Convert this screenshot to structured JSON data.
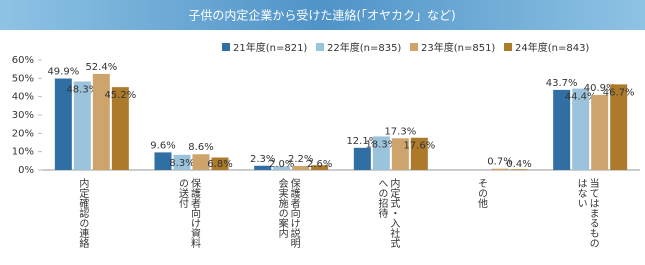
{
  "chart_data": {
    "type": "bar",
    "title": "子供の内定企業から受けた連絡(「オヤカク」など)",
    "categories": [
      "内定確認の連絡",
      "保護者向け資料の送付",
      "保護者向け説明会実施の案内",
      "内定式・入社式への招待",
      "その他",
      "当てはまるものはない"
    ],
    "series": [
      {
        "name": "21年度(n=821)",
        "color": "#2f6fa3",
        "values": [
          49.9,
          9.6,
          2.3,
          12.1,
          null,
          43.7
        ],
        "value_labels": [
          "49.9%",
          "9.6%",
          "2.3%",
          "12.1%",
          null,
          "43.7%"
        ]
      },
      {
        "name": "22年度(n=835)",
        "color": "#9cc3dc",
        "values": [
          48.3,
          8.3,
          2.0,
          18.3,
          null,
          44.4
        ],
        "value_labels": [
          "48.3%",
          "8.3%",
          "2.0%",
          "18.3%",
          null,
          "44.4%"
        ]
      },
      {
        "name": "23年度(n=851)",
        "color": "#cda46c",
        "values": [
          52.4,
          8.6,
          2.2,
          17.3,
          0.7,
          40.9
        ],
        "value_labels": [
          "52.4%",
          "8.6%",
          "2.2%",
          "17.3%",
          "0.7%",
          "40.9%"
        ]
      },
      {
        "name": "24年度(n=843)",
        "color": "#ad7a2c",
        "values": [
          45.2,
          6.8,
          2.6,
          17.6,
          0.4,
          46.7
        ],
        "value_labels": [
          "45.2%",
          "6.8%",
          "2.6%",
          "17.6%",
          "0.4%",
          "46.7%"
        ]
      }
    ],
    "ylim": [
      0,
      60
    ],
    "yticks": [
      {
        "value": 0,
        "label": "0%"
      },
      {
        "value": 10,
        "label": "10%"
      },
      {
        "value": 20,
        "label": "20%"
      },
      {
        "value": 30,
        "label": "30%"
      },
      {
        "value": 40,
        "label": "40%"
      },
      {
        "value": 50,
        "label": "50%"
      },
      {
        "value": 60,
        "label": "60%"
      }
    ]
  }
}
